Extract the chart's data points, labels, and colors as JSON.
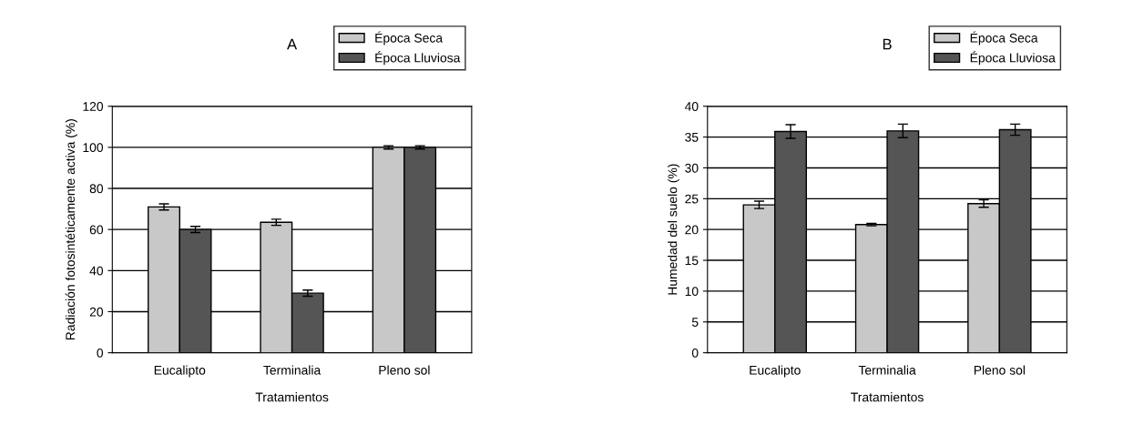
{
  "chart_data": [
    {
      "type": "bar",
      "title": "A",
      "xlabel": "Tratamientos",
      "ylabel": "Radiación fotosintéticamente activa (%)",
      "categories": [
        "Eucalipto",
        "Terminalia",
        "Pleno sol"
      ],
      "series": [
        {
          "name": "Época Seca",
          "color": "#c8c8c8",
          "values": [
            71,
            63.5,
            100
          ],
          "errors": [
            1.5,
            1.5,
            0.8
          ]
        },
        {
          "name": "Época Lluviosa",
          "color": "#555555",
          "values": [
            60,
            29,
            100
          ],
          "errors": [
            1.5,
            1.5,
            0.8
          ]
        }
      ],
      "ylim": [
        0,
        120
      ],
      "yticks": [
        0,
        20,
        40,
        60,
        80,
        100,
        120
      ],
      "grid": "y",
      "legend": "top right"
    },
    {
      "type": "bar",
      "title": "B",
      "xlabel": "Tratamientos",
      "ylabel": "Humedad del suelo (%)",
      "categories": [
        "Eucalipto",
        "Terminalia",
        "Pleno sol"
      ],
      "series": [
        {
          "name": "Época Seca",
          "color": "#c8c8c8",
          "values": [
            24,
            20.8,
            24.2
          ],
          "errors": [
            0.6,
            0.2,
            0.6
          ]
        },
        {
          "name": "Época Lluviosa",
          "color": "#555555",
          "values": [
            35.9,
            36,
            36.2
          ],
          "errors": [
            1.1,
            1.1,
            0.9
          ]
        }
      ],
      "ylim": [
        0,
        40
      ],
      "yticks": [
        0,
        5,
        10,
        15,
        20,
        25,
        30,
        35,
        40
      ],
      "grid": "y",
      "legend": "top right"
    }
  ]
}
